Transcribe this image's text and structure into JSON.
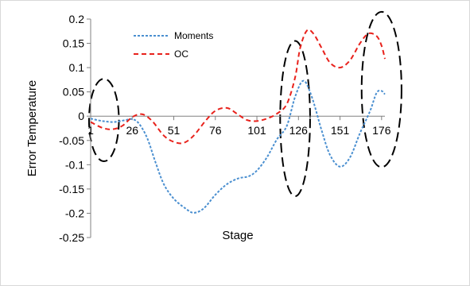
{
  "chart_data": {
    "type": "line",
    "xlabel": "Stage",
    "ylabel": "Error Temperature",
    "xlim": [
      1,
      178
    ],
    "ylim": [
      -0.25,
      0.2
    ],
    "x_ticks": [
      1,
      26,
      51,
      76,
      101,
      126,
      151,
      176
    ],
    "y_ticks": [
      0.2,
      0.15,
      0.1,
      0.05,
      0,
      -0.05,
      -0.1,
      -0.15,
      -0.2,
      -0.25
    ],
    "y_tick_labels": [
      "0.2",
      "0.15",
      "0.1",
      "0.05",
      "0",
      "-0.05",
      "-0.1",
      "-0.15",
      "-0.2",
      "-0.25"
    ],
    "grid": false,
    "legend_position": "top-left",
    "series": [
      {
        "name": "Moments",
        "color": "#4a8fd0",
        "dash": "dotted",
        "points": [
          [
            1,
            -0.005
          ],
          [
            8,
            -0.01
          ],
          [
            15,
            -0.012
          ],
          [
            22,
            -0.008
          ],
          [
            26,
            -0.006
          ],
          [
            30,
            -0.015
          ],
          [
            35,
            -0.045
          ],
          [
            40,
            -0.095
          ],
          [
            45,
            -0.14
          ],
          [
            51,
            -0.17
          ],
          [
            58,
            -0.19
          ],
          [
            63,
            -0.199
          ],
          [
            69,
            -0.19
          ],
          [
            76,
            -0.162
          ],
          [
            83,
            -0.14
          ],
          [
            90,
            -0.128
          ],
          [
            96,
            -0.124
          ],
          [
            101,
            -0.112
          ],
          [
            107,
            -0.085
          ],
          [
            113,
            -0.048
          ],
          [
            119,
            -0.02
          ],
          [
            124,
            0.04
          ],
          [
            129,
            0.073
          ],
          [
            134,
            0.04
          ],
          [
            140,
            -0.03
          ],
          [
            145,
            -0.08
          ],
          [
            151,
            -0.104
          ],
          [
            157,
            -0.085
          ],
          [
            163,
            -0.035
          ],
          [
            169,
            0.01
          ],
          [
            173,
            0.048
          ],
          [
            176,
            0.052
          ],
          [
            178,
            0.045
          ]
        ]
      },
      {
        "name": "OC",
        "color": "#e8221c",
        "dash": "dashed",
        "points": [
          [
            1,
            -0.012
          ],
          [
            8,
            -0.024
          ],
          [
            14,
            -0.027
          ],
          [
            20,
            -0.02
          ],
          [
            26,
            -0.002
          ],
          [
            32,
            0.004
          ],
          [
            38,
            -0.01
          ],
          [
            45,
            -0.04
          ],
          [
            51,
            -0.053
          ],
          [
            57,
            -0.055
          ],
          [
            63,
            -0.04
          ],
          [
            70,
            -0.01
          ],
          [
            76,
            0.011
          ],
          [
            83,
            0.017
          ],
          [
            89,
            0.005
          ],
          [
            95,
            -0.008
          ],
          [
            101,
            -0.01
          ],
          [
            107,
            -0.005
          ],
          [
            113,
            0.005
          ],
          [
            119,
            0.025
          ],
          [
            124,
            0.08
          ],
          [
            127,
            0.14
          ],
          [
            131,
            0.176
          ],
          [
            135,
            0.17
          ],
          [
            140,
            0.14
          ],
          [
            145,
            0.11
          ],
          [
            151,
            0.1
          ],
          [
            157,
            0.115
          ],
          [
            163,
            0.15
          ],
          [
            168,
            0.17
          ],
          [
            173,
            0.165
          ],
          [
            176,
            0.145
          ],
          [
            178,
            0.118
          ]
        ]
      }
    ],
    "annotations": [
      {
        "shape": "ellipse",
        "center": [
          9,
          -0.008
        ],
        "half_width": 9,
        "half_height": 0.085
      },
      {
        "shape": "ellipse",
        "center": [
          124,
          -0.005
        ],
        "half_width": 9,
        "half_height": 0.16
      },
      {
        "shape": "ellipse",
        "center": [
          176,
          0.055
        ],
        "half_width": 12,
        "half_height": 0.16
      }
    ]
  }
}
